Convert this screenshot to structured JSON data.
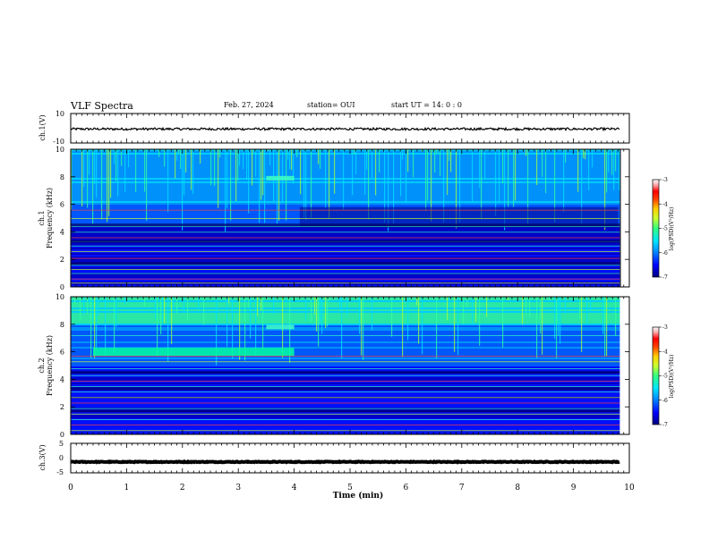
{
  "header": {
    "title": "VLF Spectra",
    "date": "Feb. 27, 2024",
    "station": "station= OUI",
    "start": "start  UT =   14: 0   : 0"
  },
  "colors": {
    "trace": "#000000",
    "background": "#ffffff",
    "colormap": [
      "#00007f",
      "#0000ff",
      "#0080ff",
      "#00e5ff",
      "#30ff80",
      "#c8ff30",
      "#ffd000",
      "#ff4000",
      "#ff0000",
      "#ffb0b0",
      "#ffffff"
    ]
  },
  "chart_data": [
    {
      "type": "line",
      "name": "ch1-waveform",
      "ylabel": "ch.1(V)",
      "ylim": [
        -10,
        10
      ],
      "ytick_labels": [
        "10",
        "-10"
      ],
      "x_range": [
        0,
        9.83
      ],
      "level": -0.5
    },
    {
      "type": "heatmap",
      "name": "ch1-spectrogram",
      "ylabel_channel": "ch.1",
      "ylabel": "Frequency (kHz)",
      "ylim": [
        0,
        10
      ],
      "yticks": [
        "0",
        "2",
        "4",
        "6",
        "8",
        "10"
      ],
      "colorbar": {
        "label": "log(PSD)(V²/Hz)",
        "range": [
          -7,
          -3
        ],
        "ticks": [
          "-3",
          "-4",
          "-5",
          "-6",
          "-7"
        ]
      },
      "features": [
        {
          "t_start": 3.5,
          "t_end": 4.0,
          "freq_khz": 7.9,
          "kind": "tone"
        }
      ]
    },
    {
      "type": "heatmap",
      "name": "ch2-spectrogram",
      "ylabel_channel": "ch.2",
      "ylabel": "Frequency (kHz)",
      "ylim": [
        0,
        10
      ],
      "yticks": [
        "0",
        "2",
        "4",
        "6",
        "8",
        "10"
      ],
      "colorbar": {
        "label": "log(PSD)(V²/Hz)",
        "range": [
          -7,
          -3
        ],
        "ticks": [
          "-3",
          "-4",
          "-5",
          "-6",
          "-7"
        ]
      },
      "features": [
        {
          "t_start": 0.4,
          "t_end": 4.0,
          "freq_khz": 6.0,
          "kind": "band"
        },
        {
          "t_start": 3.5,
          "t_end": 4.0,
          "freq_khz": 7.8,
          "kind": "tone"
        }
      ]
    },
    {
      "type": "line",
      "name": "ch3-waveform",
      "ylabel": "ch.3(V)",
      "ylim": [
        -5,
        5
      ],
      "ytick_labels": [
        "5",
        "0",
        "-5"
      ],
      "x_range": [
        0,
        9.83
      ],
      "level": -1.3
    }
  ],
  "xaxis": {
    "label": "Time (min)",
    "xlim": [
      0,
      10
    ],
    "ticks": [
      "0",
      "1",
      "2",
      "3",
      "4",
      "5",
      "6",
      "7",
      "8",
      "9",
      "10"
    ]
  }
}
